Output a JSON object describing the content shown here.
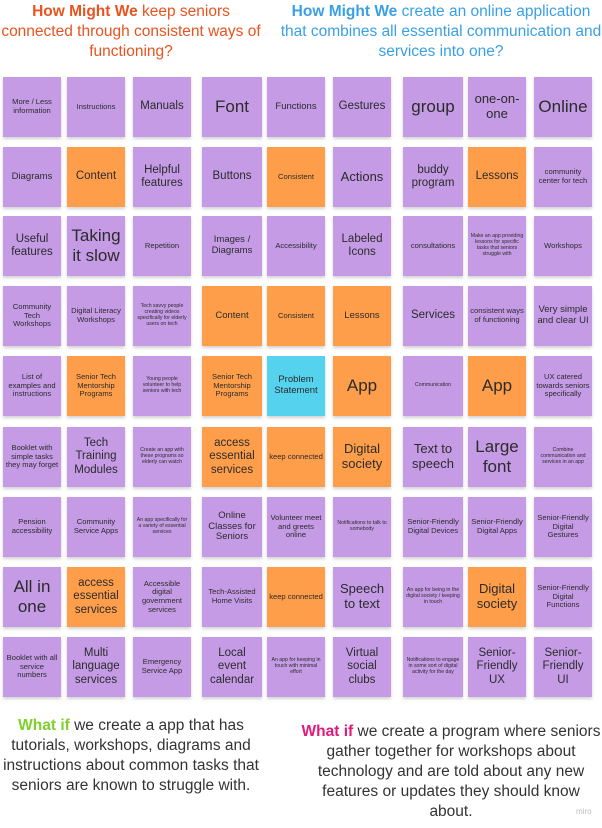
{
  "headers": {
    "left": {
      "lead": "How Might We",
      "rest": " keep seniors connected through consistent ways of functioning?"
    },
    "right": {
      "lead": "How Might We",
      "rest": " create an online application that combines all essential communication and services into one?"
    }
  },
  "notes": [
    {
      "text": "More / Less information",
      "color": "purple",
      "size": "s"
    },
    {
      "text": "Instructions",
      "color": "purple",
      "size": "s"
    },
    {
      "text": "Manuals",
      "color": "purple",
      "size": "ml"
    },
    {
      "text": "Font",
      "color": "purple",
      "size": "xl"
    },
    {
      "text": "Functions",
      "color": "purple",
      "size": "m"
    },
    {
      "text": "Gestures",
      "color": "purple",
      "size": "ml"
    },
    {
      "text": "group",
      "color": "purple",
      "size": "xl"
    },
    {
      "text": "one-on-one",
      "color": "purple",
      "size": "l"
    },
    {
      "text": "Online",
      "color": "purple",
      "size": "xl"
    },
    {
      "text": "Diagrams",
      "color": "purple",
      "size": "m"
    },
    {
      "text": "Content",
      "color": "orange",
      "size": "ml"
    },
    {
      "text": "Helpful features",
      "color": "purple",
      "size": "ml"
    },
    {
      "text": "Buttons",
      "color": "purple",
      "size": "ml"
    },
    {
      "text": "Consistent",
      "color": "orange",
      "size": "s"
    },
    {
      "text": "Actions",
      "color": "purple",
      "size": "l"
    },
    {
      "text": "buddy program",
      "color": "purple",
      "size": "ml"
    },
    {
      "text": "Lessons",
      "color": "orange",
      "size": "ml"
    },
    {
      "text": "community center for tech",
      "color": "purple",
      "size": "s"
    },
    {
      "text": "Useful features",
      "color": "purple",
      "size": "ml"
    },
    {
      "text": "Taking it slow",
      "color": "purple",
      "size": "xl"
    },
    {
      "text": "Repetition",
      "color": "purple",
      "size": "s"
    },
    {
      "text": "Images / Diagrams",
      "color": "purple",
      "size": "m"
    },
    {
      "text": "Accessibility",
      "color": "purple",
      "size": "s"
    },
    {
      "text": "Labeled Icons",
      "color": "purple",
      "size": "ml"
    },
    {
      "text": "consultations",
      "color": "purple",
      "size": "s"
    },
    {
      "text": "Make an app providing lessons for specific tasks that seniors struggle with",
      "color": "purple",
      "size": "xs"
    },
    {
      "text": "Workshops",
      "color": "purple",
      "size": "s"
    },
    {
      "text": "Community Tech Workshops",
      "color": "purple",
      "size": "s"
    },
    {
      "text": "Digital Literacy Workshops",
      "color": "purple",
      "size": "s"
    },
    {
      "text": "Tech savvy people creating videos specifically for elderly users on tech",
      "color": "purple",
      "size": "xs"
    },
    {
      "text": "Content",
      "color": "orange",
      "size": "m"
    },
    {
      "text": "Consistent",
      "color": "orange",
      "size": "s"
    },
    {
      "text": "Lessons",
      "color": "orange",
      "size": "m"
    },
    {
      "text": "Services",
      "color": "purple",
      "size": "ml"
    },
    {
      "text": "consistent ways of functioning",
      "color": "purple",
      "size": "s"
    },
    {
      "text": "Very simple and clear UI",
      "color": "purple",
      "size": "m"
    },
    {
      "text": "List of examples and instructions",
      "color": "purple",
      "size": "s"
    },
    {
      "text": "Senior Tech Mentorship Programs",
      "color": "orange",
      "size": "s"
    },
    {
      "text": "Young people volunteer to help seniors with tech",
      "color": "purple",
      "size": "xs"
    },
    {
      "text": "Senior Tech Mentorship Programs",
      "color": "orange",
      "size": "s"
    },
    {
      "text": "Problem Statement",
      "color": "blue",
      "size": "m"
    },
    {
      "text": "App",
      "color": "orange",
      "size": "xl"
    },
    {
      "text": "Communication",
      "color": "purple",
      "size": "xs"
    },
    {
      "text": "App",
      "color": "orange",
      "size": "xl"
    },
    {
      "text": "UX catered towards seniors specifically",
      "color": "purple",
      "size": "s"
    },
    {
      "text": "Booklet with simple tasks they may forget",
      "color": "purple",
      "size": "s"
    },
    {
      "text": "Tech Training Modules",
      "color": "purple",
      "size": "ml"
    },
    {
      "text": "Create an app with these programs so elderly can watch",
      "color": "purple",
      "size": "xs"
    },
    {
      "text": "access essential services",
      "color": "orange",
      "size": "ml"
    },
    {
      "text": "keep connected",
      "color": "orange",
      "size": "s"
    },
    {
      "text": "Digital society",
      "color": "orange",
      "size": "l"
    },
    {
      "text": "Text to speech",
      "color": "purple",
      "size": "l"
    },
    {
      "text": "Large font",
      "color": "purple",
      "size": "xl"
    },
    {
      "text": "Combine communication and services in an app",
      "color": "purple",
      "size": "xs"
    },
    {
      "text": "Pension accessibility",
      "color": "purple",
      "size": "s"
    },
    {
      "text": "Community Service Apps",
      "color": "purple",
      "size": "s"
    },
    {
      "text": "An app specifically for a variety of essential services",
      "color": "purple",
      "size": "xs"
    },
    {
      "text": "Online Classes for Seniors",
      "color": "purple",
      "size": "m"
    },
    {
      "text": "Volunteer meet and greets online",
      "color": "purple",
      "size": "s"
    },
    {
      "text": "Notifications to talk to somebody",
      "color": "purple",
      "size": "xs"
    },
    {
      "text": "Senior-Friendly Digital Devices",
      "color": "purple",
      "size": "s"
    },
    {
      "text": "Senior-Friendly Digital Apps",
      "color": "purple",
      "size": "s"
    },
    {
      "text": "Senior-Friendly Digital Gestures",
      "color": "purple",
      "size": "s"
    },
    {
      "text": "All in one",
      "color": "purple",
      "size": "xl"
    },
    {
      "text": "access essential services",
      "color": "orange",
      "size": "ml"
    },
    {
      "text": "Accessible digital government services",
      "color": "purple",
      "size": "s"
    },
    {
      "text": "Tech-Assisted Home Visits",
      "color": "purple",
      "size": "s"
    },
    {
      "text": "keep connected",
      "color": "orange",
      "size": "s"
    },
    {
      "text": "Speech to text",
      "color": "purple",
      "size": "l"
    },
    {
      "text": "An app for being in the digital society / keeping in touch",
      "color": "purple",
      "size": "xs"
    },
    {
      "text": "Digital society",
      "color": "orange",
      "size": "l"
    },
    {
      "text": "Senior-Friendly Digital Functions",
      "color": "purple",
      "size": "s"
    },
    {
      "text": "Booklet with all service numbers",
      "color": "purple",
      "size": "s"
    },
    {
      "text": "Multi language services",
      "color": "purple",
      "size": "ml"
    },
    {
      "text": "Emergency Service App",
      "color": "purple",
      "size": "s"
    },
    {
      "text": "Local event calendar",
      "color": "purple",
      "size": "ml"
    },
    {
      "text": "An app for keeping in touch with minimal effort",
      "color": "purple",
      "size": "xs"
    },
    {
      "text": "Virtual social clubs",
      "color": "purple",
      "size": "ml"
    },
    {
      "text": "Notifications to engage in some sort of digital activity for the day",
      "color": "purple",
      "size": "xs"
    },
    {
      "text": "Senior-Friendly UX",
      "color": "purple",
      "size": "ml"
    },
    {
      "text": "Senior-Friendly UI",
      "color": "purple",
      "size": "ml"
    }
  ],
  "footers": {
    "left": {
      "lead": "What if",
      "rest": " we create a app that has tutorials, workshops, diagrams and instructions about common tasks that seniors are known to struggle with."
    },
    "right": {
      "lead": "What if",
      "rest": " we create a program where seniors gather together for workshops about technology and are told about any new features or updates they should know about."
    }
  },
  "watermark": "miro"
}
